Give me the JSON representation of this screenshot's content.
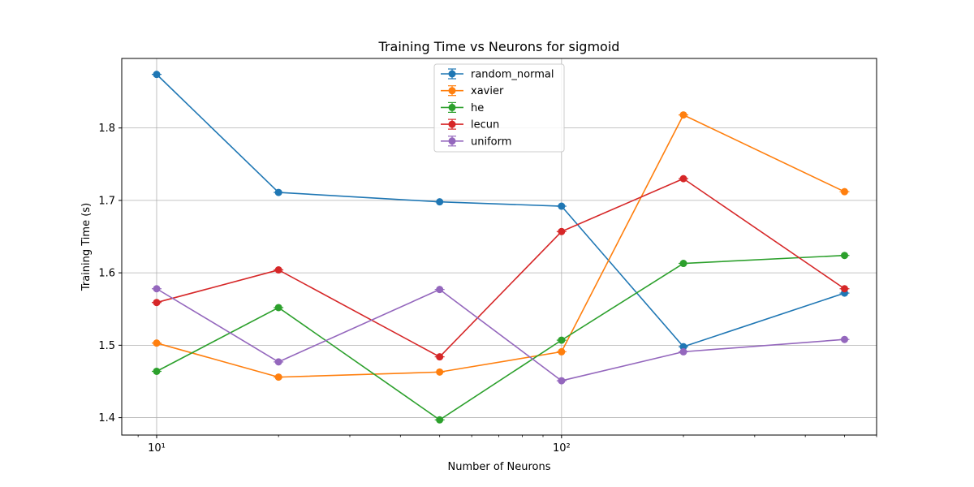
{
  "chart_data": {
    "type": "line",
    "title": "Training Time vs Neurons for sigmoid",
    "xlabel": "Number of Neurons",
    "ylabel": "Training Time (s)",
    "xscale": "log",
    "x": [
      10,
      20,
      50,
      100,
      200,
      500
    ],
    "xlim": [
      8.2,
      600
    ],
    "ylim": [
      1.376,
      1.896
    ],
    "xticks": [
      10,
      100
    ],
    "xtick_labels": [
      "10¹",
      "10²"
    ],
    "yticks": [
      1.4,
      1.5,
      1.6,
      1.7,
      1.8
    ],
    "ytick_labels": [
      "1.4",
      "1.5",
      "1.6",
      "1.7",
      "1.8"
    ],
    "grid": true,
    "legend_position": "top-center",
    "series": [
      {
        "name": "random_normal",
        "color": "#1f77b4",
        "values": [
          1.874,
          1.711,
          1.698,
          1.692,
          1.498,
          1.572
        ]
      },
      {
        "name": "xavier",
        "color": "#ff7f0e",
        "values": [
          1.503,
          1.456,
          1.463,
          1.491,
          1.818,
          1.712
        ]
      },
      {
        "name": "he",
        "color": "#2ca02c",
        "values": [
          1.464,
          1.552,
          1.397,
          1.507,
          1.613,
          1.624
        ]
      },
      {
        "name": "lecun",
        "color": "#d62728",
        "values": [
          1.559,
          1.604,
          1.484,
          1.657,
          1.73,
          1.578
        ]
      },
      {
        "name": "uniform",
        "color": "#9467bd",
        "values": [
          1.578,
          1.477,
          1.577,
          1.451,
          1.491,
          1.508
        ]
      }
    ]
  }
}
